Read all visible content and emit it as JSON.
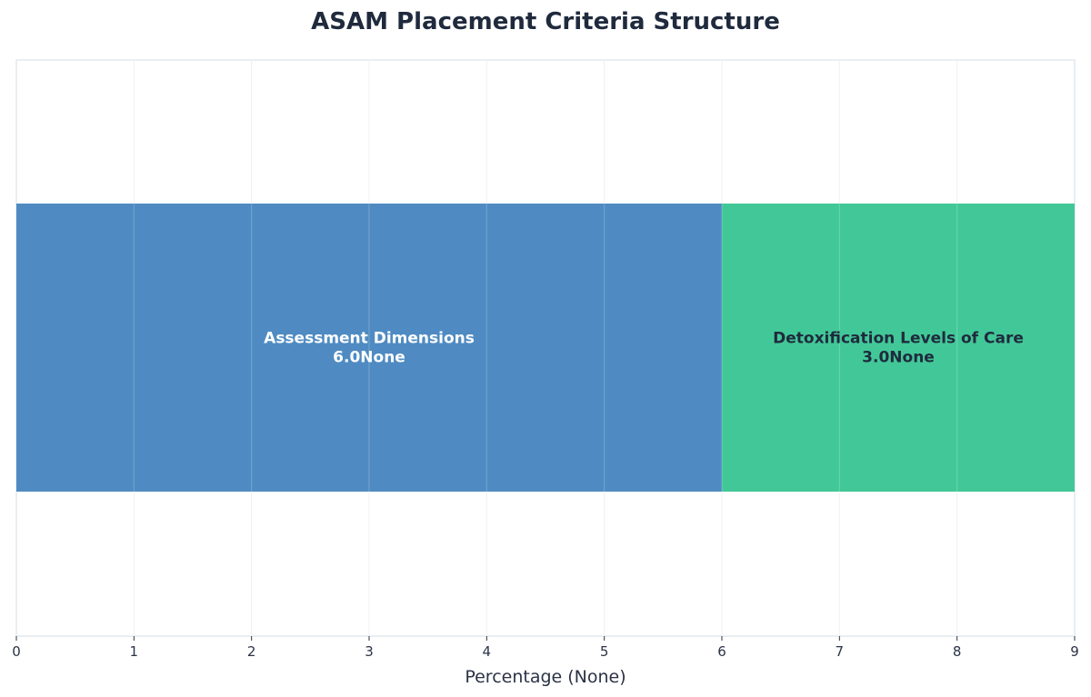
{
  "chart_data": {
    "type": "bar",
    "orientation": "horizontal-stacked",
    "title": "ASAM Placement Criteria Structure",
    "xlabel": "Percentage (None)",
    "ylabel": "",
    "xlim": [
      0,
      9
    ],
    "x_ticks": [
      "0",
      "1",
      "2",
      "3",
      "4",
      "5",
      "6",
      "7",
      "8",
      "9"
    ],
    "grid": true,
    "segments": [
      {
        "name": "Assessment Dimensions",
        "value": 6.0,
        "value_label": "6.0None",
        "color": "#4f8bc2",
        "text_color": "#ffffff"
      },
      {
        "name": "Detoxification Levels of Care",
        "value": 3.0,
        "value_label": "3.0None",
        "color": "#42c898",
        "text_color": "#1f2a3d"
      }
    ]
  }
}
